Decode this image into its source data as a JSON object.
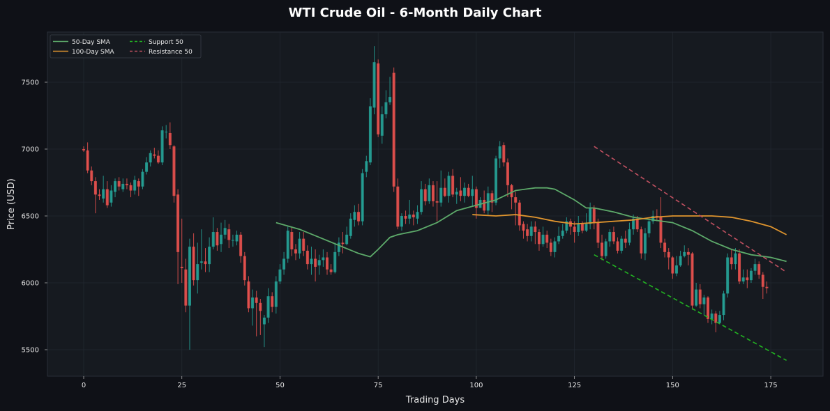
{
  "chart_data": {
    "type": "candlestick",
    "title": "WTI Crude Oil - 6-Month Daily Chart",
    "xlabel": "Trading Days",
    "ylabel": "Price (USD)",
    "xlim": [
      -9.5,
      188.5
    ],
    "ylim": [
      5300,
      7870
    ],
    "xticks": [
      0,
      25,
      50,
      75,
      100,
      125,
      150,
      175
    ],
    "yticks": [
      5500,
      6000,
      6500,
      7000,
      7500
    ],
    "grid": true,
    "legend_position": "upper left",
    "colors": {
      "background": "#0f1117",
      "plot_bg": "#161a20",
      "up": "#26a69a",
      "down": "#ef5350",
      "sma50": "#5daa6a",
      "sma100": "#e0952e",
      "support": "#22b422",
      "resistance": "#c05060",
      "text": "#e6e6e6",
      "grid": "#222830"
    },
    "legend": [
      {
        "label": "50-Day SMA",
        "color": "#5daa6a",
        "style": "solid"
      },
      {
        "label": "100-Day SMA",
        "color": "#e0952e",
        "style": "solid"
      },
      {
        "label": "Support 50",
        "color": "#22b422",
        "style": "dashed"
      },
      {
        "label": "Resistance 50",
        "color": "#c05060",
        "style": "dashed"
      }
    ],
    "support_line": {
      "x": [
        130,
        179
      ],
      "y": [
        6210,
        5420
      ]
    },
    "resistance_line": {
      "x": [
        130,
        179
      ],
      "y": [
        7020,
        6080
      ]
    },
    "sma50": {
      "x": [
        49,
        55,
        60,
        65,
        70,
        73,
        75,
        78,
        80,
        85,
        90,
        95,
        100,
        105,
        110,
        115,
        118,
        120,
        125,
        128,
        130,
        135,
        140,
        145,
        150,
        155,
        160,
        165,
        170,
        175,
        179
      ],
      "y": [
        6450,
        6400,
        6340,
        6280,
        6220,
        6195,
        6250,
        6340,
        6360,
        6390,
        6450,
        6540,
        6580,
        6620,
        6690,
        6710,
        6710,
        6700,
        6620,
        6560,
        6560,
        6530,
        6490,
        6470,
        6450,
        6390,
        6310,
        6250,
        6210,
        6190,
        6160
      ]
    },
    "sma100": {
      "x": [
        99,
        105,
        110,
        115,
        120,
        125,
        130,
        135,
        140,
        145,
        150,
        155,
        160,
        165,
        170,
        175,
        179
      ],
      "y": [
        6510,
        6500,
        6510,
        6490,
        6460,
        6440,
        6450,
        6460,
        6470,
        6490,
        6500,
        6500,
        6500,
        6490,
        6460,
        6420,
        6360
      ]
    },
    "candles": [
      [
        7000,
        6990,
        7020,
        6980
      ],
      [
        6990,
        6840,
        7050,
        6820
      ],
      [
        6840,
        6760,
        6870,
        6730
      ],
      [
        6760,
        6660,
        6790,
        6520
      ],
      [
        6660,
        6650,
        6700,
        6620
      ],
      [
        6630,
        6700,
        6800,
        6600
      ],
      [
        6700,
        6580,
        6760,
        6560
      ],
      [
        6600,
        6690,
        6730,
        6570
      ],
      [
        6680,
        6760,
        6780,
        6640
      ],
      [
        6760,
        6720,
        6790,
        6690
      ],
      [
        6700,
        6740,
        6780,
        6680
      ],
      [
        6740,
        6730,
        6780,
        6700
      ],
      [
        6730,
        6690,
        6750,
        6640
      ],
      [
        6690,
        6770,
        6800,
        6660
      ],
      [
        6760,
        6720,
        6780,
        6650
      ],
      [
        6720,
        6830,
        6850,
        6700
      ],
      [
        6830,
        6900,
        6940,
        6810
      ],
      [
        6900,
        6970,
        6990,
        6870
      ],
      [
        6960,
        6950,
        7010,
        6930
      ],
      [
        6950,
        6900,
        6990,
        6890
      ],
      [
        6900,
        7140,
        7170,
        6880
      ],
      [
        7130,
        7130,
        7180,
        7080
      ],
      [
        7120,
        7030,
        7200,
        7000
      ],
      [
        7020,
        6650,
        7030,
        6600
      ],
      [
        6660,
        6230,
        6700,
        5990
      ],
      [
        6120,
        6110,
        6480,
        6000
      ],
      [
        6100,
        5830,
        6180,
        5780
      ],
      [
        5830,
        6270,
        6330,
        5500
      ],
      [
        6270,
        6020,
        6370,
        5980
      ],
      [
        6020,
        6140,
        6300,
        5920
      ],
      [
        6150,
        6160,
        6400,
        6100
      ],
      [
        6160,
        6140,
        6260,
        6080
      ],
      [
        6140,
        6270,
        6340,
        6080
      ],
      [
        6270,
        6380,
        6490,
        6250
      ],
      [
        6380,
        6280,
        6410,
        6240
      ],
      [
        6290,
        6360,
        6450,
        6230
      ],
      [
        6360,
        6410,
        6470,
        6330
      ],
      [
        6400,
        6320,
        6440,
        6260
      ],
      [
        6320,
        6320,
        6360,
        6270
      ],
      [
        6310,
        6360,
        6390,
        6280
      ],
      [
        6360,
        6200,
        6380,
        6150
      ],
      [
        6200,
        6020,
        6230,
        5980
      ],
      [
        6010,
        5810,
        6050,
        5780
      ],
      [
        5810,
        5890,
        5950,
        5680
      ],
      [
        5890,
        5850,
        5940,
        5600
      ],
      [
        5850,
        5790,
        5880,
        5610
      ],
      [
        5690,
        5740,
        5760,
        5520
      ],
      [
        5740,
        5900,
        5960,
        5700
      ],
      [
        5900,
        5820,
        5930,
        5780
      ],
      [
        5820,
        6010,
        6050,
        5770
      ],
      [
        6010,
        6100,
        6140,
        5990
      ],
      [
        6100,
        6180,
        6230,
        6060
      ],
      [
        6180,
        6390,
        6420,
        6150
      ],
      [
        6380,
        6250,
        6420,
        6200
      ],
      [
        6250,
        6220,
        6290,
        6170
      ],
      [
        6220,
        6330,
        6380,
        6180
      ],
      [
        6330,
        6240,
        6380,
        6200
      ],
      [
        6240,
        6140,
        6280,
        6100
      ],
      [
        6140,
        6180,
        6270,
        6060
      ],
      [
        6180,
        6120,
        6250,
        6010
      ],
      [
        6130,
        6170,
        6210,
        6060
      ],
      [
        6170,
        6190,
        6250,
        6120
      ],
      [
        6190,
        6100,
        6230,
        6060
      ],
      [
        6100,
        6080,
        6140,
        6060
      ],
      [
        6080,
        6230,
        6300,
        6070
      ],
      [
        6230,
        6300,
        6340,
        6200
      ],
      [
        6300,
        6290,
        6380,
        6220
      ],
      [
        6290,
        6360,
        6420,
        6280
      ],
      [
        6350,
        6480,
        6520,
        6330
      ],
      [
        6470,
        6530,
        6580,
        6420
      ],
      [
        6530,
        6460,
        6590,
        6430
      ],
      [
        6460,
        6820,
        6850,
        6430
      ],
      [
        6830,
        6910,
        6950,
        6790
      ],
      [
        6900,
        7320,
        7380,
        6880
      ],
      [
        7310,
        7650,
        7770,
        7260
      ],
      [
        7640,
        7110,
        7670,
        7090
      ],
      [
        7100,
        7260,
        7320,
        7040
      ],
      [
        7260,
        7350,
        7440,
        7230
      ],
      [
        7350,
        7390,
        7540,
        7330
      ],
      [
        7570,
        6720,
        7610,
        6680
      ],
      [
        6720,
        6420,
        6780,
        6400
      ],
      [
        6420,
        6500,
        6520,
        6390
      ],
      [
        6500,
        6480,
        6540,
        6440
      ],
      [
        6480,
        6510,
        6620,
        6440
      ],
      [
        6510,
        6490,
        6540,
        6430
      ],
      [
        6480,
        6530,
        6580,
        6440
      ],
      [
        6530,
        6700,
        6760,
        6510
      ],
      [
        6700,
        6610,
        6740,
        6580
      ],
      [
        6610,
        6730,
        6780,
        6590
      ],
      [
        6730,
        6610,
        6760,
        6570
      ],
      [
        6610,
        6600,
        6760,
        6460
      ],
      [
        6600,
        6710,
        6840,
        6570
      ],
      [
        6710,
        6650,
        6780,
        6640
      ],
      [
        6650,
        6800,
        6830,
        6600
      ],
      [
        6800,
        6660,
        6850,
        6640
      ],
      [
        6660,
        6680,
        6710,
        6590
      ],
      [
        6690,
        6650,
        6790,
        6610
      ],
      [
        6650,
        6710,
        6750,
        6600
      ],
      [
        6710,
        6650,
        6740,
        6640
      ],
      [
        6650,
        6700,
        6800,
        6570
      ],
      [
        6700,
        6560,
        6720,
        6480
      ],
      [
        6560,
        6620,
        6640,
        6560
      ],
      [
        6620,
        6540,
        6690,
        6520
      ],
      [
        6540,
        6670,
        6720,
        6510
      ],
      [
        6670,
        6600,
        6690,
        6530
      ],
      [
        6600,
        6930,
        6950,
        6580
      ],
      [
        6930,
        7020,
        7060,
        6860
      ],
      [
        7030,
        6900,
        7050,
        6870
      ],
      [
        6900,
        6730,
        6930,
        6640
      ],
      [
        6730,
        6640,
        6740,
        6550
      ],
      [
        6640,
        6600,
        6680,
        6430
      ],
      [
        6600,
        6430,
        6620,
        6390
      ],
      [
        6440,
        6390,
        6460,
        6330
      ],
      [
        6400,
        6350,
        6440,
        6310
      ],
      [
        6350,
        6420,
        6460,
        6310
      ],
      [
        6420,
        6380,
        6460,
        6290
      ],
      [
        6380,
        6290,
        6400,
        6240
      ],
      [
        6290,
        6360,
        6420,
        6270
      ],
      [
        6360,
        6300,
        6390,
        6260
      ],
      [
        6300,
        6230,
        6330,
        6200
      ],
      [
        6230,
        6310,
        6340,
        6190
      ],
      [
        6310,
        6350,
        6420,
        6290
      ],
      [
        6350,
        6390,
        6440,
        6330
      ],
      [
        6390,
        6460,
        6490,
        6370
      ],
      [
        6460,
        6420,
        6480,
        6360
      ],
      [
        6420,
        6380,
        6460,
        6300
      ],
      [
        6380,
        6440,
        6500,
        6350
      ],
      [
        6440,
        6390,
        6460,
        6370
      ],
      [
        6390,
        6440,
        6520,
        6380
      ],
      [
        6440,
        6560,
        6600,
        6400
      ],
      [
        6560,
        6450,
        6580,
        6400
      ],
      [
        6450,
        6300,
        6480,
        6260
      ],
      [
        6300,
        6200,
        6360,
        6170
      ],
      [
        6200,
        6310,
        6330,
        6180
      ],
      [
        6310,
        6380,
        6400,
        6270
      ],
      [
        6380,
        6310,
        6420,
        6290
      ],
      [
        6310,
        6240,
        6340,
        6220
      ],
      [
        6240,
        6330,
        6350,
        6220
      ],
      [
        6330,
        6300,
        6390,
        6260
      ],
      [
        6300,
        6400,
        6450,
        6280
      ],
      [
        6400,
        6480,
        6510,
        6360
      ],
      [
        6480,
        6400,
        6500,
        6380
      ],
      [
        6400,
        6220,
        6420,
        6180
      ],
      [
        6220,
        6370,
        6410,
        6170
      ],
      [
        6370,
        6460,
        6470,
        6340
      ],
      [
        6460,
        6500,
        6540,
        6440
      ],
      [
        6500,
        6490,
        6550,
        6460
      ],
      [
        6490,
        6300,
        6640,
        6260
      ],
      [
        6300,
        6230,
        6330,
        6190
      ],
      [
        6230,
        6190,
        6260,
        6100
      ],
      [
        6190,
        6070,
        6200,
        6030
      ],
      [
        6070,
        6130,
        6200,
        6050
      ],
      [
        6130,
        6200,
        6240,
        6120
      ],
      [
        6200,
        6230,
        6280,
        6190
      ],
      [
        6230,
        6210,
        6260,
        6130
      ],
      [
        6220,
        5830,
        6230,
        5800
      ],
      [
        5830,
        5950,
        6000,
        5820
      ],
      [
        5950,
        5840,
        5990,
        5810
      ],
      [
        5840,
        5890,
        5910,
        5760
      ],
      [
        5890,
        5730,
        5900,
        5700
      ],
      [
        5730,
        5770,
        5800,
        5690
      ],
      [
        5770,
        5700,
        5790,
        5630
      ],
      [
        5700,
        5760,
        5790,
        5690
      ],
      [
        5760,
        5920,
        5940,
        5720
      ],
      [
        5920,
        6190,
        6220,
        5890
      ],
      [
        6190,
        6140,
        6250,
        6100
      ],
      [
        6140,
        6220,
        6260,
        6100
      ],
      [
        6220,
        6010,
        6250,
        5990
      ],
      [
        6010,
        6040,
        6100,
        5990
      ],
      [
        6040,
        6020,
        6100,
        5960
      ],
      [
        6020,
        6090,
        6110,
        6000
      ],
      [
        6090,
        6140,
        6180,
        6060
      ],
      [
        6140,
        6060,
        6160,
        6030
      ],
      [
        6060,
        5970,
        6080,
        5880
      ],
      [
        5970,
        5960,
        6010,
        5920
      ]
    ]
  }
}
